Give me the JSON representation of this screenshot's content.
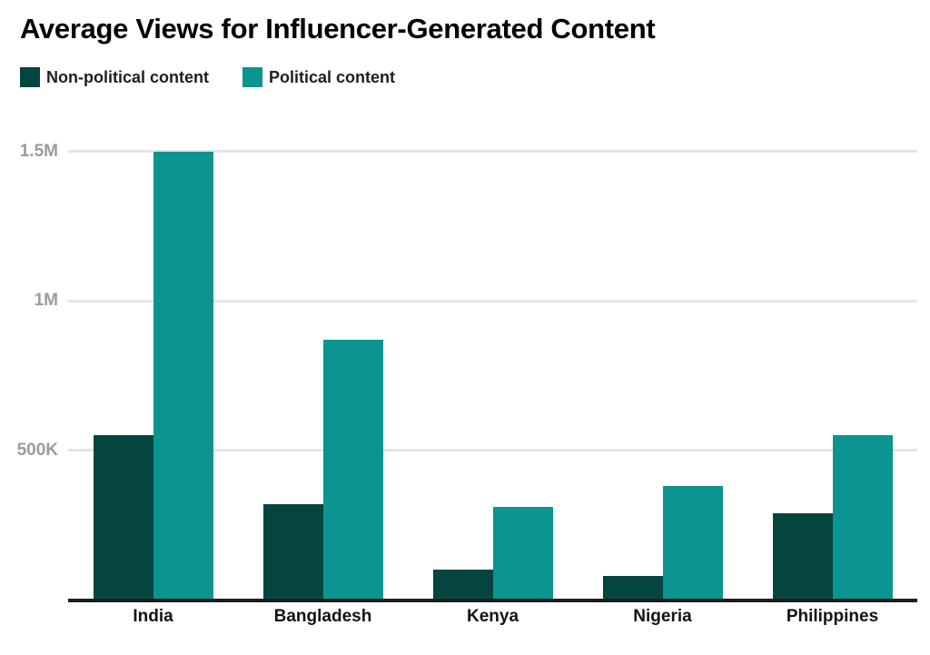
{
  "header": {
    "title": "Average Views for Influencer-Generated Content"
  },
  "colors": {
    "background": "#ffffff",
    "grid": "#e4e4e4",
    "axis": "#1c1c1c",
    "ytick_label": "#9b9b9b",
    "xtick_label": "#131313",
    "non_political": "#05453f",
    "political": "#0b9490"
  },
  "chart_data": {
    "type": "bar",
    "title": "Average Views for Influencer-Generated Content",
    "xlabel": "",
    "ylabel": "",
    "categories": [
      "India",
      "Bangladesh",
      "Kenya",
      "Nigeria",
      "Philippines"
    ],
    "series": [
      {
        "name": "Non-political content",
        "color": "#05453f",
        "values": [
          550000,
          320000,
          100000,
          80000,
          290000
        ]
      },
      {
        "name": "Political content",
        "color": "#0b9490",
        "values": [
          1500000,
          870000,
          310000,
          380000,
          550000
        ]
      }
    ],
    "yticks": [
      {
        "value": 500000,
        "label": "500K"
      },
      {
        "value": 1000000,
        "label": "1M"
      },
      {
        "value": 1500000,
        "label": "1.5M"
      }
    ],
    "ylim": [
      0,
      1550000
    ],
    "grid": true,
    "legend_position": "top-left"
  }
}
